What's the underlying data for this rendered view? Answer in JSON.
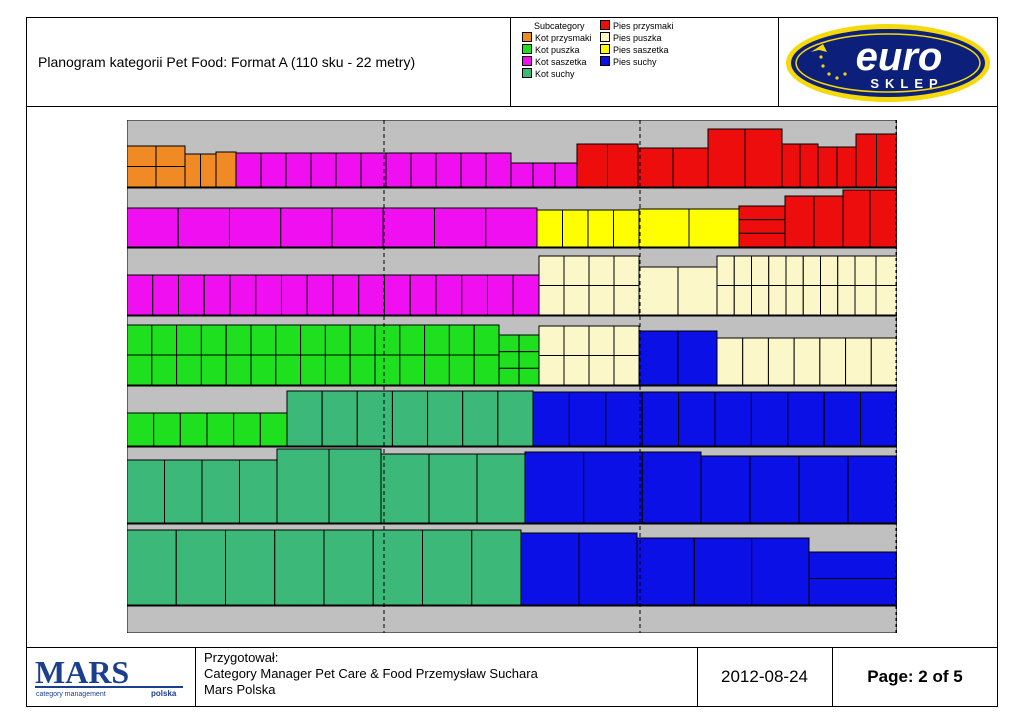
{
  "header": {
    "title": "Planogram kategorii Pet Food: Format A (110 sku - 22 metry)"
  },
  "legend": {
    "heading": "Subcategory",
    "items": [
      {
        "label": "Kot przysmaki",
        "color": "#f08a24"
      },
      {
        "label": "Kot puszka",
        "color": "#1ee01e"
      },
      {
        "label": "Kot saszetka",
        "color": "#f00ff0"
      },
      {
        "label": "Kot suchy",
        "color": "#3cb878"
      },
      {
        "label": "Pies przysmaki",
        "color": "#ee0d0d"
      },
      {
        "label": "Pies puszka",
        "color": "#fcf7c8"
      },
      {
        "label": "Pies saszetka",
        "color": "#ffff00"
      },
      {
        "label": "Pies suchy",
        "color": "#0a10e6"
      }
    ]
  },
  "logos": {
    "euro_top": "euro",
    "euro_bottom": "SKLEP",
    "mars_top": "MARS",
    "mars_sub": "category management",
    "mars_country": "polska"
  },
  "footer": {
    "prepared_label": "Przygotował:",
    "prepared_by": "Category Manager Pet Care & Food  Przemysław Suchara",
    "company": "Mars Polska",
    "date": "2012-08-24",
    "page": "Page: 2 of 5"
  },
  "colors": {
    "shelf": "#c0c0c0",
    "kot_przysmaki": "#f08a24",
    "kot_puszka": "#1ee01e",
    "kot_saszetka": "#f00ff0",
    "kot_suchy": "#3cb878",
    "pies_przysmaki": "#ee0d0d",
    "pies_puszka": "#fcf7c8",
    "pies_saszetka": "#ffff00",
    "pies_suchy": "#0a10e6"
  }
}
